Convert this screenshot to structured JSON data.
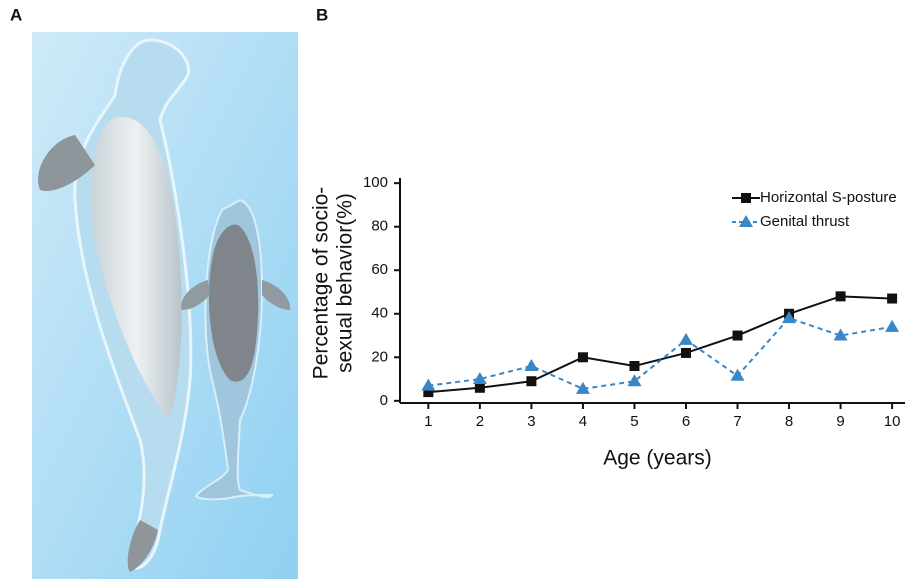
{
  "panel_labels": [
    "A",
    "B"
  ],
  "chart_data": {
    "type": "line",
    "ylabel": [
      "Percentage of socio-",
      "sexual behavior(%)"
    ],
    "xlabel": "Age (years)",
    "x": [
      1,
      2,
      3,
      4,
      5,
      6,
      7,
      8,
      9,
      10
    ],
    "series": [
      {
        "name": "Horizontal S-posture",
        "color": "#111111",
        "marker": "square",
        "dash": false,
        "values": [
          4,
          6,
          9,
          20,
          16,
          22,
          30,
          40,
          48,
          47
        ]
      },
      {
        "name": "Genital thrust",
        "color": "#3a87c8",
        "marker": "triangle",
        "dash": true,
        "values": [
          7,
          10,
          16,
          5.5,
          9,
          28,
          11.5,
          38,
          30,
          34
        ]
      }
    ],
    "xlim": [
      0.45,
      10.25
    ],
    "xticks": [
      1,
      2,
      3,
      4,
      5,
      6,
      7,
      8,
      9,
      10
    ],
    "ylim": [
      -1,
      101
    ],
    "yticks": [
      0,
      20,
      40,
      60,
      80,
      100
    ],
    "legend": "upper-right",
    "grid": false
  }
}
